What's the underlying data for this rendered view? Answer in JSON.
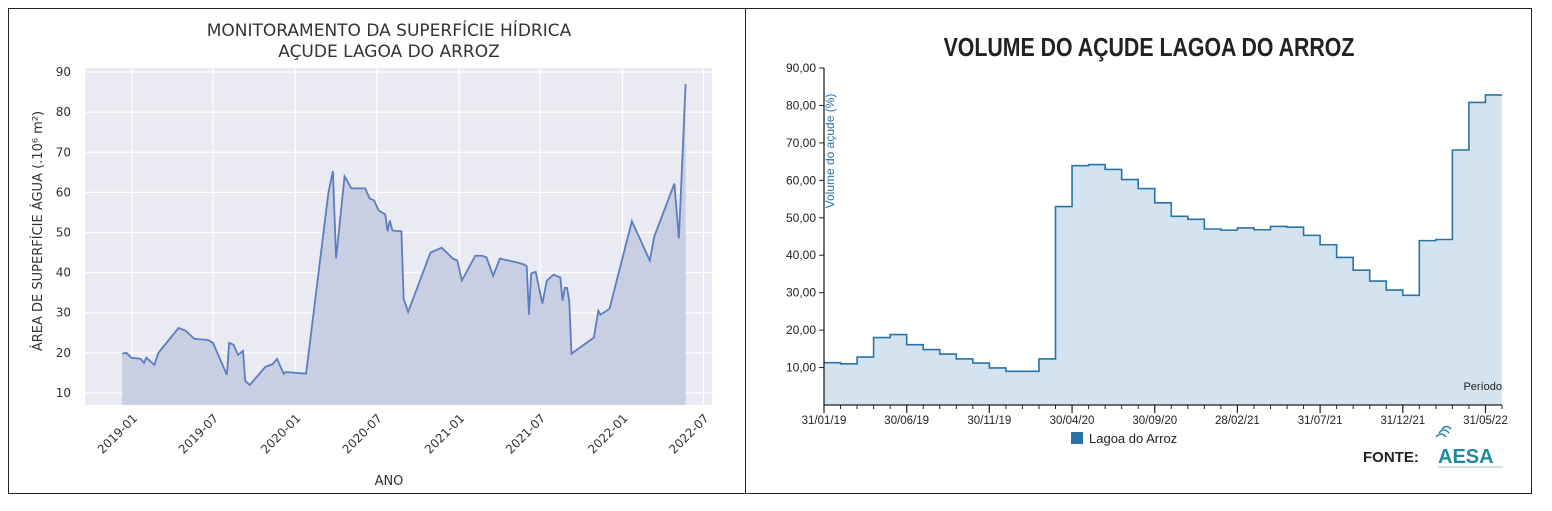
{
  "chart_data": [
    {
      "type": "area",
      "title": "MONITORAMENTO DA SUPERFÍCIE HÍDRICA",
      "subtitle": "AÇUDE LAGOA DO ARROZ",
      "xlabel": "ANO",
      "ylabel": "ÁREA DE SUPERFÍCIE ÁGUA (.10⁶ m²)",
      "xlim": [
        "2018-09-18",
        "2022-07-20"
      ],
      "ylim": [
        7,
        91
      ],
      "yticks": [
        10,
        20,
        30,
        40,
        50,
        60,
        70,
        80,
        90
      ],
      "xtick_labels": [
        "2019-01",
        "2019-07",
        "2020-01",
        "2020-07",
        "2021-01",
        "2021-07",
        "2022-01",
        "2022-07"
      ],
      "xtick_dates": [
        "2019-01-01",
        "2019-07-01",
        "2020-01-01",
        "2020-07-01",
        "2021-01-01",
        "2021-07-01",
        "2022-01-01",
        "2022-07-01"
      ],
      "grid": true,
      "colors": {
        "line": "#5c7dbf",
        "fill": "#c8cfe2",
        "plot_bg": "#eaeaf2",
        "grid": "#ffffff"
      },
      "points": [
        [
          "2018-12-10",
          19.8
        ],
        [
          "2018-12-20",
          20.0
        ],
        [
          "2018-12-30",
          18.8
        ],
        [
          "2019-01-20",
          18.5
        ],
        [
          "2019-01-28",
          17.5
        ],
        [
          "2019-02-02",
          18.8
        ],
        [
          "2019-02-20",
          17.0
        ],
        [
          "2019-03-01",
          20.0
        ],
        [
          "2019-04-15",
          26.2
        ],
        [
          "2019-05-01",
          25.5
        ],
        [
          "2019-05-20",
          23.5
        ],
        [
          "2019-06-20",
          23.2
        ],
        [
          "2019-07-01",
          22.5
        ],
        [
          "2019-08-01",
          14.5
        ],
        [
          "2019-08-06",
          22.5
        ],
        [
          "2019-08-16",
          22.0
        ],
        [
          "2019-08-26",
          19.5
        ],
        [
          "2019-09-06",
          20.5
        ],
        [
          "2019-09-11",
          13.0
        ],
        [
          "2019-09-21",
          12.0
        ],
        [
          "2019-10-26",
          16.5
        ],
        [
          "2019-11-11",
          17.2
        ],
        [
          "2019-11-21",
          18.5
        ],
        [
          "2019-12-06",
          14.8
        ],
        [
          "2019-12-11",
          15.2
        ],
        [
          "2020-01-25",
          14.8
        ],
        [
          "2020-03-15",
          60.0
        ],
        [
          "2020-03-25",
          65.3
        ],
        [
          "2020-04-01",
          43.5
        ],
        [
          "2020-04-20",
          64.0
        ],
        [
          "2020-05-05",
          61.0
        ],
        [
          "2020-06-05",
          61.0
        ],
        [
          "2020-06-15",
          58.5
        ],
        [
          "2020-06-25",
          58.0
        ],
        [
          "2020-07-05",
          55.5
        ],
        [
          "2020-07-20",
          54.5
        ],
        [
          "2020-07-25",
          50.3
        ],
        [
          "2020-07-30",
          53.0
        ],
        [
          "2020-08-05",
          50.5
        ],
        [
          "2020-08-25",
          50.3
        ],
        [
          "2020-08-30",
          33.5
        ],
        [
          "2020-09-09",
          30.2
        ],
        [
          "2020-10-29",
          45.0
        ],
        [
          "2020-11-23",
          46.2
        ],
        [
          "2020-12-18",
          43.5
        ],
        [
          "2020-12-28",
          43.0
        ],
        [
          "2021-01-07",
          38.0
        ],
        [
          "2021-02-06",
          44.2
        ],
        [
          "2021-02-21",
          44.2
        ],
        [
          "2021-03-03",
          43.8
        ],
        [
          "2021-03-18",
          39.2
        ],
        [
          "2021-04-02",
          43.5
        ],
        [
          "2021-05-12",
          42.5
        ],
        [
          "2021-05-27",
          42.0
        ],
        [
          "2021-06-01",
          41.5
        ],
        [
          "2021-06-06",
          29.5
        ],
        [
          "2021-06-11",
          39.8
        ],
        [
          "2021-06-21",
          40.2
        ],
        [
          "2021-07-06",
          32.3
        ],
        [
          "2021-07-16",
          38.0
        ],
        [
          "2021-07-31",
          39.5
        ],
        [
          "2021-08-15",
          38.8
        ],
        [
          "2021-08-20",
          33.0
        ],
        [
          "2021-08-25",
          36.2
        ],
        [
          "2021-08-30",
          36.2
        ],
        [
          "2021-09-04",
          33.0
        ],
        [
          "2021-09-09",
          19.8
        ],
        [
          "2021-10-29",
          23.8
        ],
        [
          "2021-11-08",
          30.5
        ],
        [
          "2021-11-13",
          29.5
        ],
        [
          "2021-12-03",
          31.0
        ],
        [
          "2022-01-22",
          52.8
        ],
        [
          "2022-03-03",
          43.0
        ],
        [
          "2022-03-13",
          49.0
        ],
        [
          "2022-04-27",
          62.2
        ],
        [
          "2022-05-07",
          48.5
        ],
        [
          "2022-05-22",
          87.0
        ]
      ]
    },
    {
      "type": "area",
      "title": "VOLUME DO AÇUDE LAGOA DO ARROZ",
      "ylabel": "Volume do açude (%)",
      "xlabel": "Período",
      "legend": [
        "Lagoa do Arroz"
      ],
      "legend_placement": "bottom",
      "source_label": "FONTE:",
      "source_logo": "AESA",
      "ylim": [
        0,
        90
      ],
      "yticks": [
        "90,00",
        "80,00",
        "70,00",
        "60,00",
        "50,00",
        "40,00",
        "30,00",
        "20,00",
        "10,00"
      ],
      "xtick_labels": [
        "31/01/19",
        "30/06/19",
        "30/11/19",
        "30/04/20",
        "30/09/20",
        "28/02/21",
        "31/07/21",
        "31/12/21",
        "31/05/22"
      ],
      "x_months": [
        "2019-01",
        "2019-02",
        "2019-03",
        "2019-04",
        "2019-05",
        "2019-06",
        "2019-07",
        "2019-08",
        "2019-09",
        "2019-10",
        "2019-11",
        "2019-12",
        "2020-01",
        "2020-02",
        "2020-03",
        "2020-04",
        "2020-05",
        "2020-06",
        "2020-07",
        "2020-08",
        "2020-09",
        "2020-10",
        "2020-11",
        "2020-12",
        "2021-01",
        "2021-02",
        "2021-03",
        "2021-04",
        "2021-05",
        "2021-06",
        "2021-07",
        "2021-08",
        "2021-09",
        "2021-10",
        "2021-11",
        "2021-12",
        "2022-01",
        "2022-02",
        "2022-03",
        "2022-04",
        "2022-05"
      ],
      "values": [
        11.3,
        11.0,
        12.8,
        18.0,
        18.8,
        16.1,
        14.8,
        13.6,
        12.3,
        11.2,
        9.9,
        9.0,
        9.0,
        12.3,
        53.0,
        63.9,
        64.2,
        62.9,
        60.2,
        57.8,
        54.0,
        50.4,
        49.6,
        47.0,
        46.7,
        47.3,
        46.8,
        47.7,
        47.5,
        45.3,
        42.8,
        39.4,
        36.0,
        33.1,
        30.7,
        29.3,
        43.9,
        44.2,
        68.1,
        80.8,
        82.8
      ],
      "colors": {
        "line": "#2a73a8",
        "fill": "#d3e4f0",
        "legend": "#2a73a8",
        "logo": "#1f8a9e"
      }
    }
  ]
}
